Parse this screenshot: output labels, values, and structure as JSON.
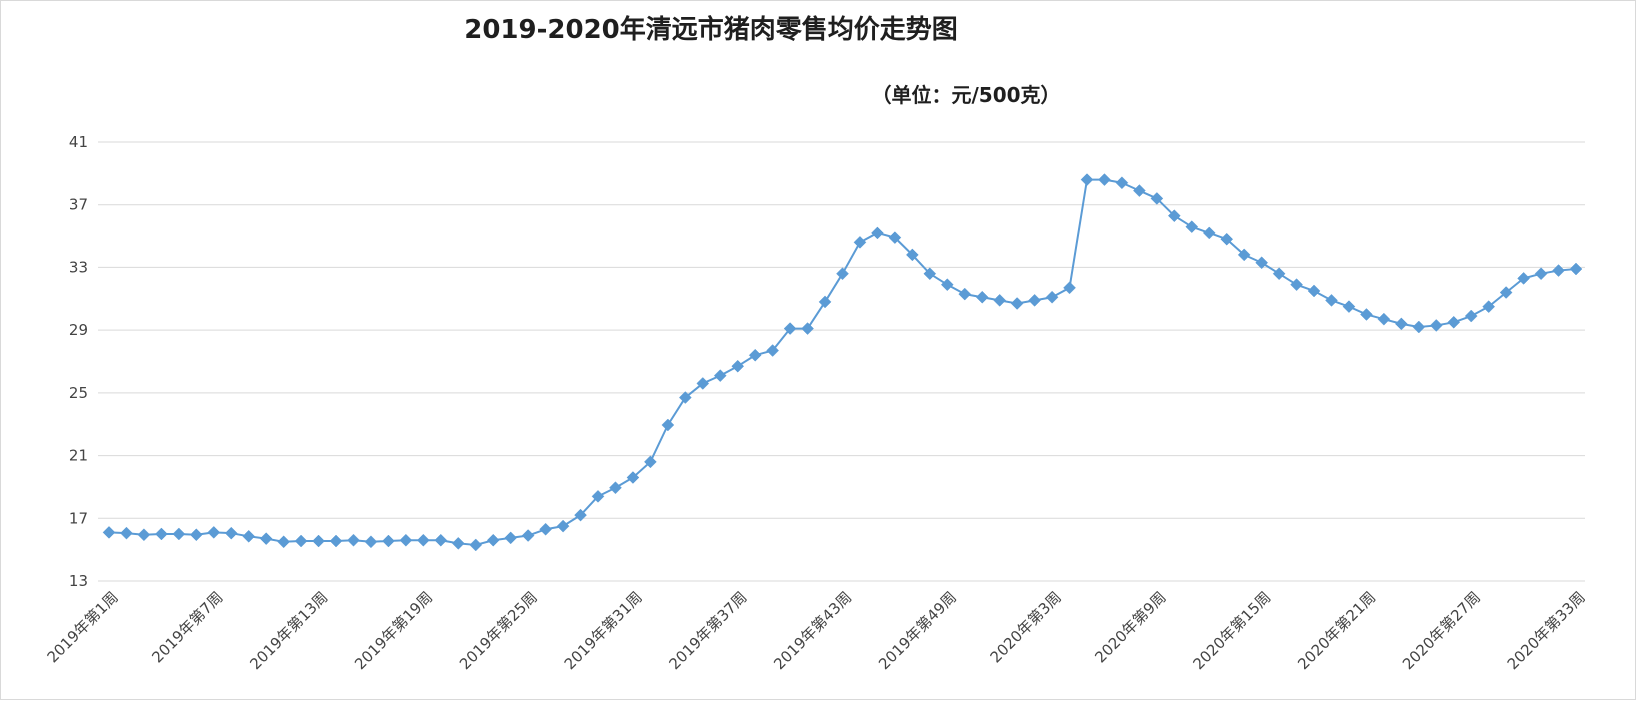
{
  "chart_data": {
    "type": "line",
    "title": "2019-2020年清远市猪肉零售均价走势图",
    "unit": "（单位：元/500克）",
    "xlabel": "",
    "ylabel": "",
    "ylim": [
      13,
      41
    ],
    "yticks": [
      13,
      17,
      21,
      25,
      29,
      33,
      37,
      41
    ],
    "grid": "horizontal",
    "legend": "none",
    "series_color": "#5b9bd5",
    "x_tick_labels": [
      "2019年第1周",
      "2019年第7周",
      "2019年第13周",
      "2019年第19周",
      "2019年第25周",
      "2019年第31周",
      "2019年第37周",
      "2019年第43周",
      "2019年第49周",
      "2020年第3周",
      "2020年第9周",
      "2020年第15周",
      "2020年第21周",
      "2020年第27周",
      "2020年第33周"
    ],
    "x_tick_index": [
      0,
      6,
      12,
      18,
      24,
      30,
      36,
      42,
      48,
      54,
      60,
      66,
      72,
      78,
      84
    ],
    "series": [
      {
        "values": [
          16.1,
          16.05,
          15.95,
          16.0,
          16.0,
          15.95,
          16.1,
          16.05,
          15.85,
          15.7,
          15.5,
          15.55,
          15.55,
          15.55,
          15.6,
          15.5,
          15.55,
          15.6,
          15.6,
          15.6,
          15.4,
          15.3,
          15.6,
          15.75,
          15.9,
          16.3,
          16.5,
          17.2,
          18.4,
          18.95,
          19.6,
          20.6,
          22.95,
          24.7,
          25.6,
          26.1,
          26.7,
          27.4,
          27.7,
          29.1,
          29.1,
          30.8,
          32.6,
          34.6,
          35.2,
          34.9,
          33.8,
          32.6,
          31.9,
          31.3,
          31.1,
          30.9,
          30.7,
          30.9,
          31.1,
          31.7,
          38.6,
          38.6,
          38.4,
          37.9,
          37.4,
          36.3,
          35.6,
          35.2,
          34.8,
          33.8,
          33.3,
          32.6,
          31.9,
          31.5,
          30.9,
          30.5,
          30.0,
          29.7,
          29.4,
          29.2,
          29.3,
          29.5,
          29.9,
          30.5,
          31.4,
          32.3,
          32.6,
          32.8,
          32.9
        ]
      }
    ]
  }
}
